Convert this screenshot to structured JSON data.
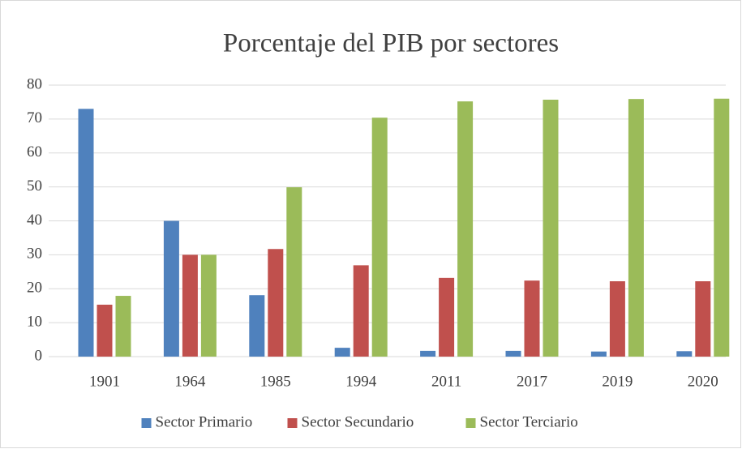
{
  "chart_data": {
    "type": "bar",
    "title": "Porcentaje del PIB por sectores",
    "categories": [
      "1901",
      "1964",
      "1985",
      "1994",
      "2011",
      "2017",
      "2019",
      "2020"
    ],
    "series": [
      {
        "name": "Sector Primario",
        "color": "#4f81bd",
        "values": [
          73,
          40,
          18.1,
          2.6,
          1.7,
          1.7,
          1.5,
          1.6
        ]
      },
      {
        "name": "Sector Secundario",
        "color": "#c0504d",
        "values": [
          15.3,
          30,
          31.7,
          26.9,
          23.2,
          22.4,
          22.2,
          22.2
        ]
      },
      {
        "name": "Sector Terciario",
        "color": "#9bbb59",
        "values": [
          17.9,
          30,
          49.9,
          70.4,
          75.2,
          75.7,
          75.9,
          76
        ]
      }
    ],
    "ylim": [
      0,
      80
    ],
    "yticks": [
      0,
      10,
      20,
      30,
      40,
      50,
      60,
      70,
      80
    ],
    "grid": true,
    "legend": "bottom"
  }
}
